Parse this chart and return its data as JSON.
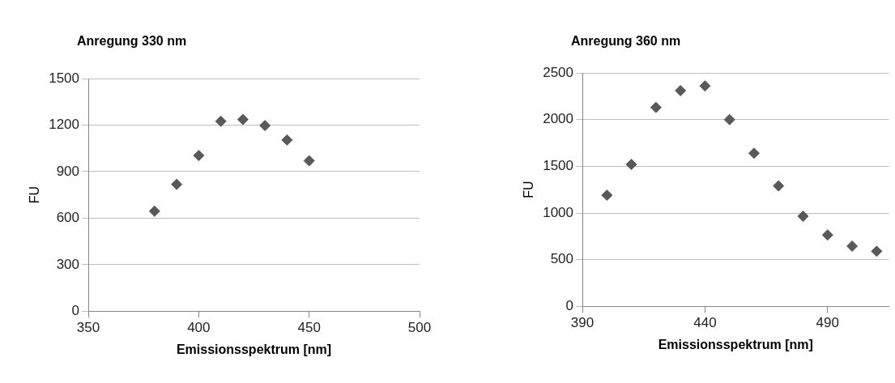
{
  "chart_data": [
    {
      "type": "scatter",
      "title": "Anregung 330 nm",
      "xlabel": "Emissionsspektrum [nm]",
      "ylabel": "FU",
      "x": [
        380,
        390,
        400,
        410,
        420,
        430,
        440,
        450
      ],
      "series": [
        {
          "color": "#595959",
          "values": [
            645,
            818,
            1004,
            1225,
            1236,
            1197,
            1104,
            970
          ]
        }
      ],
      "xlim": [
        350,
        500
      ],
      "xticks": [
        350,
        400,
        450,
        500
      ],
      "ylim": [
        0,
        1500
      ],
      "yticks": [
        0,
        300,
        600,
        900,
        1200,
        1500
      ],
      "grid": "y",
      "marker": "diamond"
    },
    {
      "type": "scatter",
      "title": "Anregung 360 nm",
      "xlabel": "Emissionsspektrum [nm]",
      "ylabel": "FU",
      "x": [
        400,
        410,
        420,
        430,
        440,
        450,
        460,
        470,
        480,
        490,
        500,
        510
      ],
      "series": [
        {
          "color": "#595959",
          "values": [
            1190,
            1520,
            2130,
            2310,
            2360,
            2000,
            1640,
            1290,
            965,
            765,
            645,
            590
          ]
        }
      ],
      "xlim": [
        390,
        515
      ],
      "xticks": [
        390,
        440,
        490
      ],
      "ylim": [
        0,
        2500
      ],
      "yticks": [
        0,
        500,
        1000,
        1500,
        2000,
        2500
      ],
      "grid": "y",
      "marker": "diamond"
    }
  ]
}
